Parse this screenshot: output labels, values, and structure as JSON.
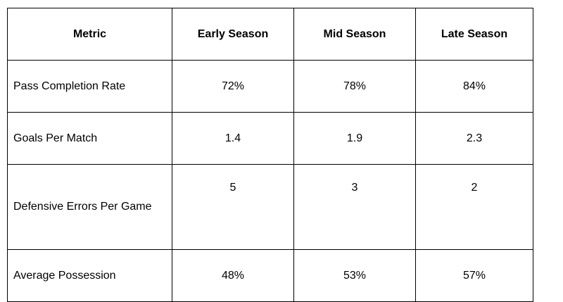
{
  "table": {
    "headers": [
      "Metric",
      "Early Season",
      "Mid Season",
      "Late Season"
    ],
    "rows": [
      {
        "metric": "Pass Completion Rate",
        "early": "72%",
        "mid": "78%",
        "late": "84%"
      },
      {
        "metric": "Goals Per Match",
        "early": "1.4",
        "mid": "1.9",
        "late": "2.3"
      },
      {
        "metric": "Defensive Errors Per Game",
        "early": "5",
        "mid": "3",
        "late": "2"
      },
      {
        "metric": "Average Possession",
        "early": "48%",
        "mid": "53%",
        "late": "57%"
      }
    ]
  }
}
